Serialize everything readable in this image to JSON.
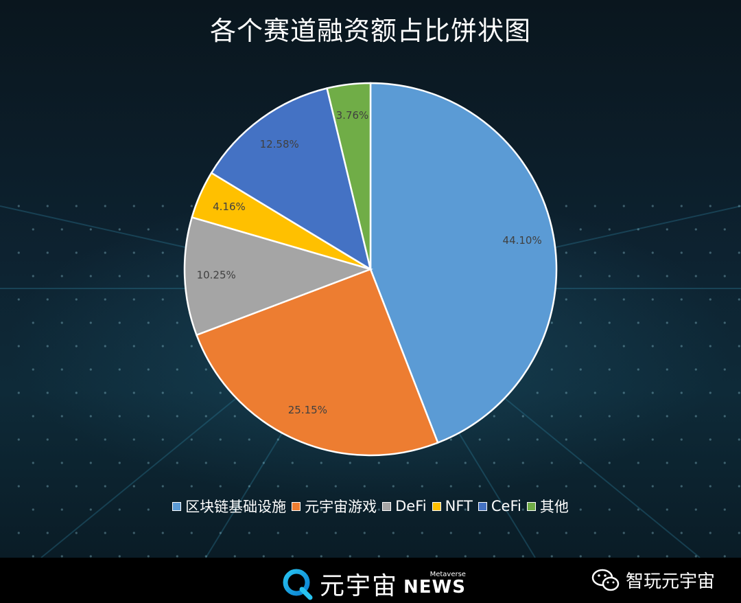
{
  "title": "各个赛道融资额占比饼状图",
  "chart_data": {
    "type": "pie",
    "title": "各个赛道融资额占比饼状图",
    "categories": [
      "区块链基础设施",
      "元宇宙游戏",
      "DeFi",
      "NFT",
      "CeFi",
      "其他"
    ],
    "values": [
      44.1,
      25.15,
      10.25,
      4.16,
      12.58,
      3.76
    ],
    "labels": [
      "44.10%",
      "25.15%",
      "10.25%",
      "4.16%",
      "12.58%",
      "3.76%"
    ],
    "colors": [
      "#5b9bd5",
      "#ed7d31",
      "#a5a5a5",
      "#ffc000",
      "#4472c4",
      "#70ad47"
    ],
    "start_angle_deg": 0,
    "direction": "clockwise",
    "legend_position": "bottom"
  },
  "footer": {
    "brand_name": "元宇宙",
    "brand_sub_top": "Metaverse",
    "brand_sub_main": "NEWS",
    "brand_logo_icon": "q-circle-logo-icon",
    "account_icon": "wechat-icon",
    "account_name": "智玩元宇宙"
  }
}
